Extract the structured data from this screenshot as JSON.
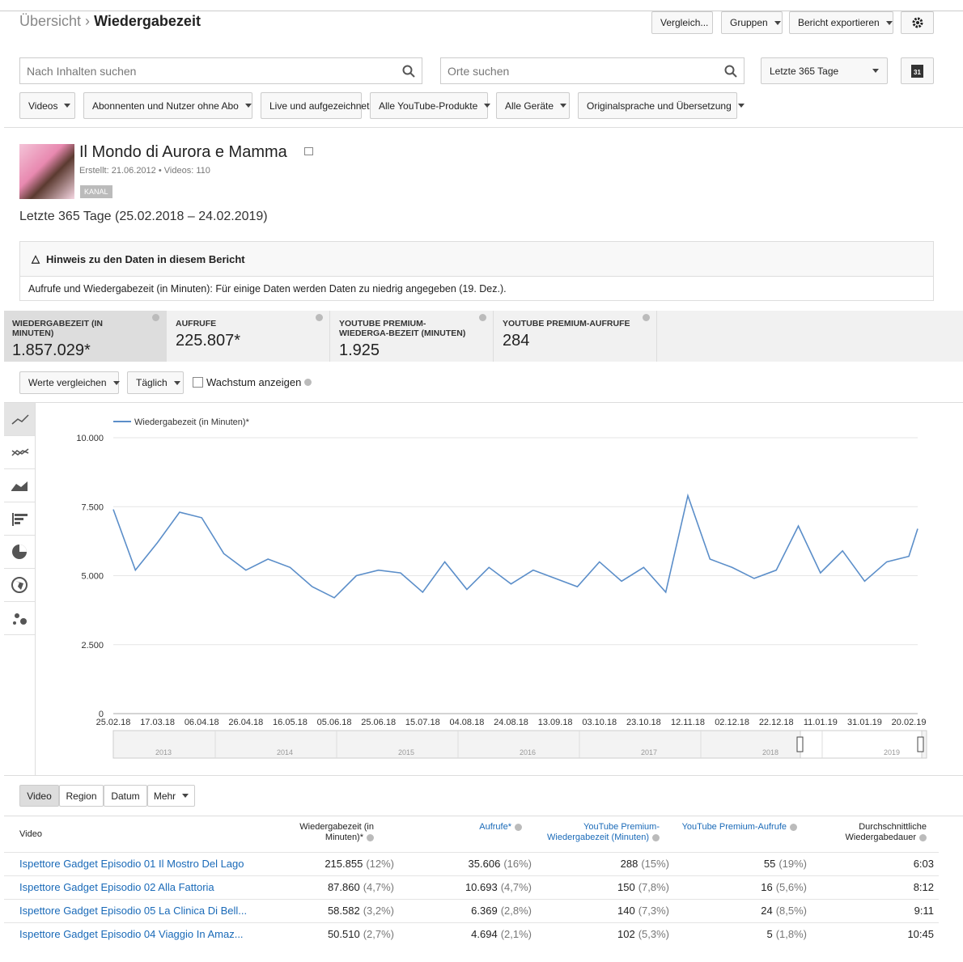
{
  "header": {
    "breadcrumb_parent": "Übersicht",
    "breadcrumb_separator": "›",
    "title": "Wiedergabezeit",
    "buttons": [
      "Vergleich...",
      "Gruppen",
      "Bericht exportieren"
    ]
  },
  "search": {
    "content_placeholder": "Nach Inhalten suchen",
    "location_placeholder": "Orte suchen",
    "date_range": "Letzte 365 Tage",
    "calendar_day": "31"
  },
  "filters": [
    "Videos",
    "Abonnenten und Nutzer ohne Abo",
    "Live und aufgezeichnet",
    "Alle YouTube-Produkte",
    "Alle Geräte",
    "Originalsprache und Übersetzung"
  ],
  "channel": {
    "name": "Il Mondo di Aurora e Mamma",
    "created": "Erstellt: 21.06.2012",
    "videos": "Videos: 110",
    "badge": "KANAL"
  },
  "period": "Letzte 365 Tage (25.02.2018 – 24.02.2019)",
  "notice": {
    "title": "Hinweis zu den Daten in diesem Bericht",
    "text": "Aufrufe und Wiedergabezeit (in Minuten): Für einige Daten werden Daten zu niedrig angegeben (19. Dez.)."
  },
  "metrics": [
    {
      "label": "WIEDERGABEZEIT (IN MINUTEN)",
      "value": "1.857.029*"
    },
    {
      "label": "AUFRUFE",
      "value": "225.807*"
    },
    {
      "label": "YOUTUBE PREMIUM-WIEDERGA-BEZEIT (MINUTEN)",
      "value": "1.925"
    },
    {
      "label": "YOUTUBE PREMIUM-AUFRUFE",
      "value": "284"
    }
  ],
  "controls": {
    "compare": "Werte vergleichen",
    "interval": "Täglich",
    "growth": "Wachstum anzeigen"
  },
  "chart_data": {
    "type": "line",
    "grid": true,
    "x": [
      "25.02.18",
      "07.03.18",
      "17.03.18",
      "27.03.18",
      "06.04.18",
      "16.04.18",
      "26.04.18",
      "06.05.18",
      "16.05.18",
      "26.05.18",
      "05.06.18",
      "15.06.18",
      "25.06.18",
      "05.07.18",
      "15.07.18",
      "25.07.18",
      "04.08.18",
      "14.08.18",
      "24.08.18",
      "03.09.18",
      "13.09.18",
      "23.09.18",
      "03.10.18",
      "13.10.18",
      "23.10.18",
      "02.11.18",
      "12.11.18",
      "22.11.18",
      "02.12.18",
      "12.12.18",
      "22.12.18",
      "01.01.19",
      "11.01.19",
      "21.01.19",
      "31.01.19",
      "10.02.19",
      "20.02.19",
      "24.02.19"
    ],
    "series": [
      {
        "name": "Wiedergabezeit (in Minuten)*",
        "color": "#5b8ec9",
        "values": [
          7400,
          5200,
          6200,
          7300,
          7100,
          5800,
          5200,
          5600,
          5300,
          4600,
          4200,
          5000,
          5200,
          5100,
          4400,
          5500,
          4500,
          5300,
          4700,
          5200,
          4900,
          4600,
          5500,
          4800,
          5300,
          4400,
          7900,
          5600,
          5300,
          4900,
          5200,
          6800,
          5100,
          5900,
          4800,
          5500,
          5700,
          6700
        ]
      }
    ],
    "xlim": [
      "25.02.18",
      "24.02.19"
    ],
    "xticks": [
      "25.02.18",
      "17.03.18",
      "06.04.18",
      "26.04.18",
      "16.05.18",
      "05.06.18",
      "25.06.18",
      "15.07.18",
      "04.08.18",
      "24.08.18",
      "13.09.18",
      "03.10.18",
      "23.10.18",
      "12.11.18",
      "02.12.18",
      "22.12.18",
      "11.01.19",
      "31.01.19",
      "20.02.19"
    ],
    "ylim": [
      0,
      10000
    ],
    "yticks": [
      0,
      {
        "value": 2500,
        "label": "2.500"
      },
      {
        "value": 5000,
        "label": "5.000"
      },
      {
        "value": 7500,
        "label": "7.500"
      },
      {
        "value": 10000,
        "label": "10.000"
      }
    ]
  },
  "navigator": {
    "years": [
      "2013",
      "2014",
      "2015",
      "2016",
      "2017",
      "2018",
      "2019"
    ]
  },
  "tabs": [
    "Video",
    "Region",
    "Datum",
    "Mehr"
  ],
  "table": {
    "headers": [
      "Video",
      "Wiedergabezeit (in Minuten)*",
      "Aufrufe*",
      "YouTube Premium-Wiedergabezeit (Minuten)",
      "YouTube Premium-Aufrufe",
      "Durchschnittliche Wiedergabedauer"
    ],
    "rows": [
      [
        "Ispettore Gadget Episodio 01 Il Mostro Del Lago",
        "215.855",
        "(12%)",
        "35.606",
        "(16%)",
        "288",
        "(15%)",
        "55",
        "(19%)",
        "6:03"
      ],
      [
        "Ispettore Gadget Episodio 02 Alla Fattoria",
        "87.860",
        "(4,7%)",
        "10.693",
        "(4,7%)",
        "150",
        "(7,8%)",
        "16",
        "(5,6%)",
        "8:12"
      ],
      [
        "Ispettore Gadget Episodio 05 La Clinica Di Bell...",
        "58.582",
        "(3,2%)",
        "6.369",
        "(2,8%)",
        "140",
        "(7,3%)",
        "24",
        "(8,5%)",
        "9:11"
      ],
      [
        "Ispettore Gadget Episodio 04 Viaggio In Amaz...",
        "50.510",
        "(2,7%)",
        "4.694",
        "(2,1%)",
        "102",
        "(5,3%)",
        "5",
        "(1,8%)",
        "10:45"
      ]
    ]
  }
}
